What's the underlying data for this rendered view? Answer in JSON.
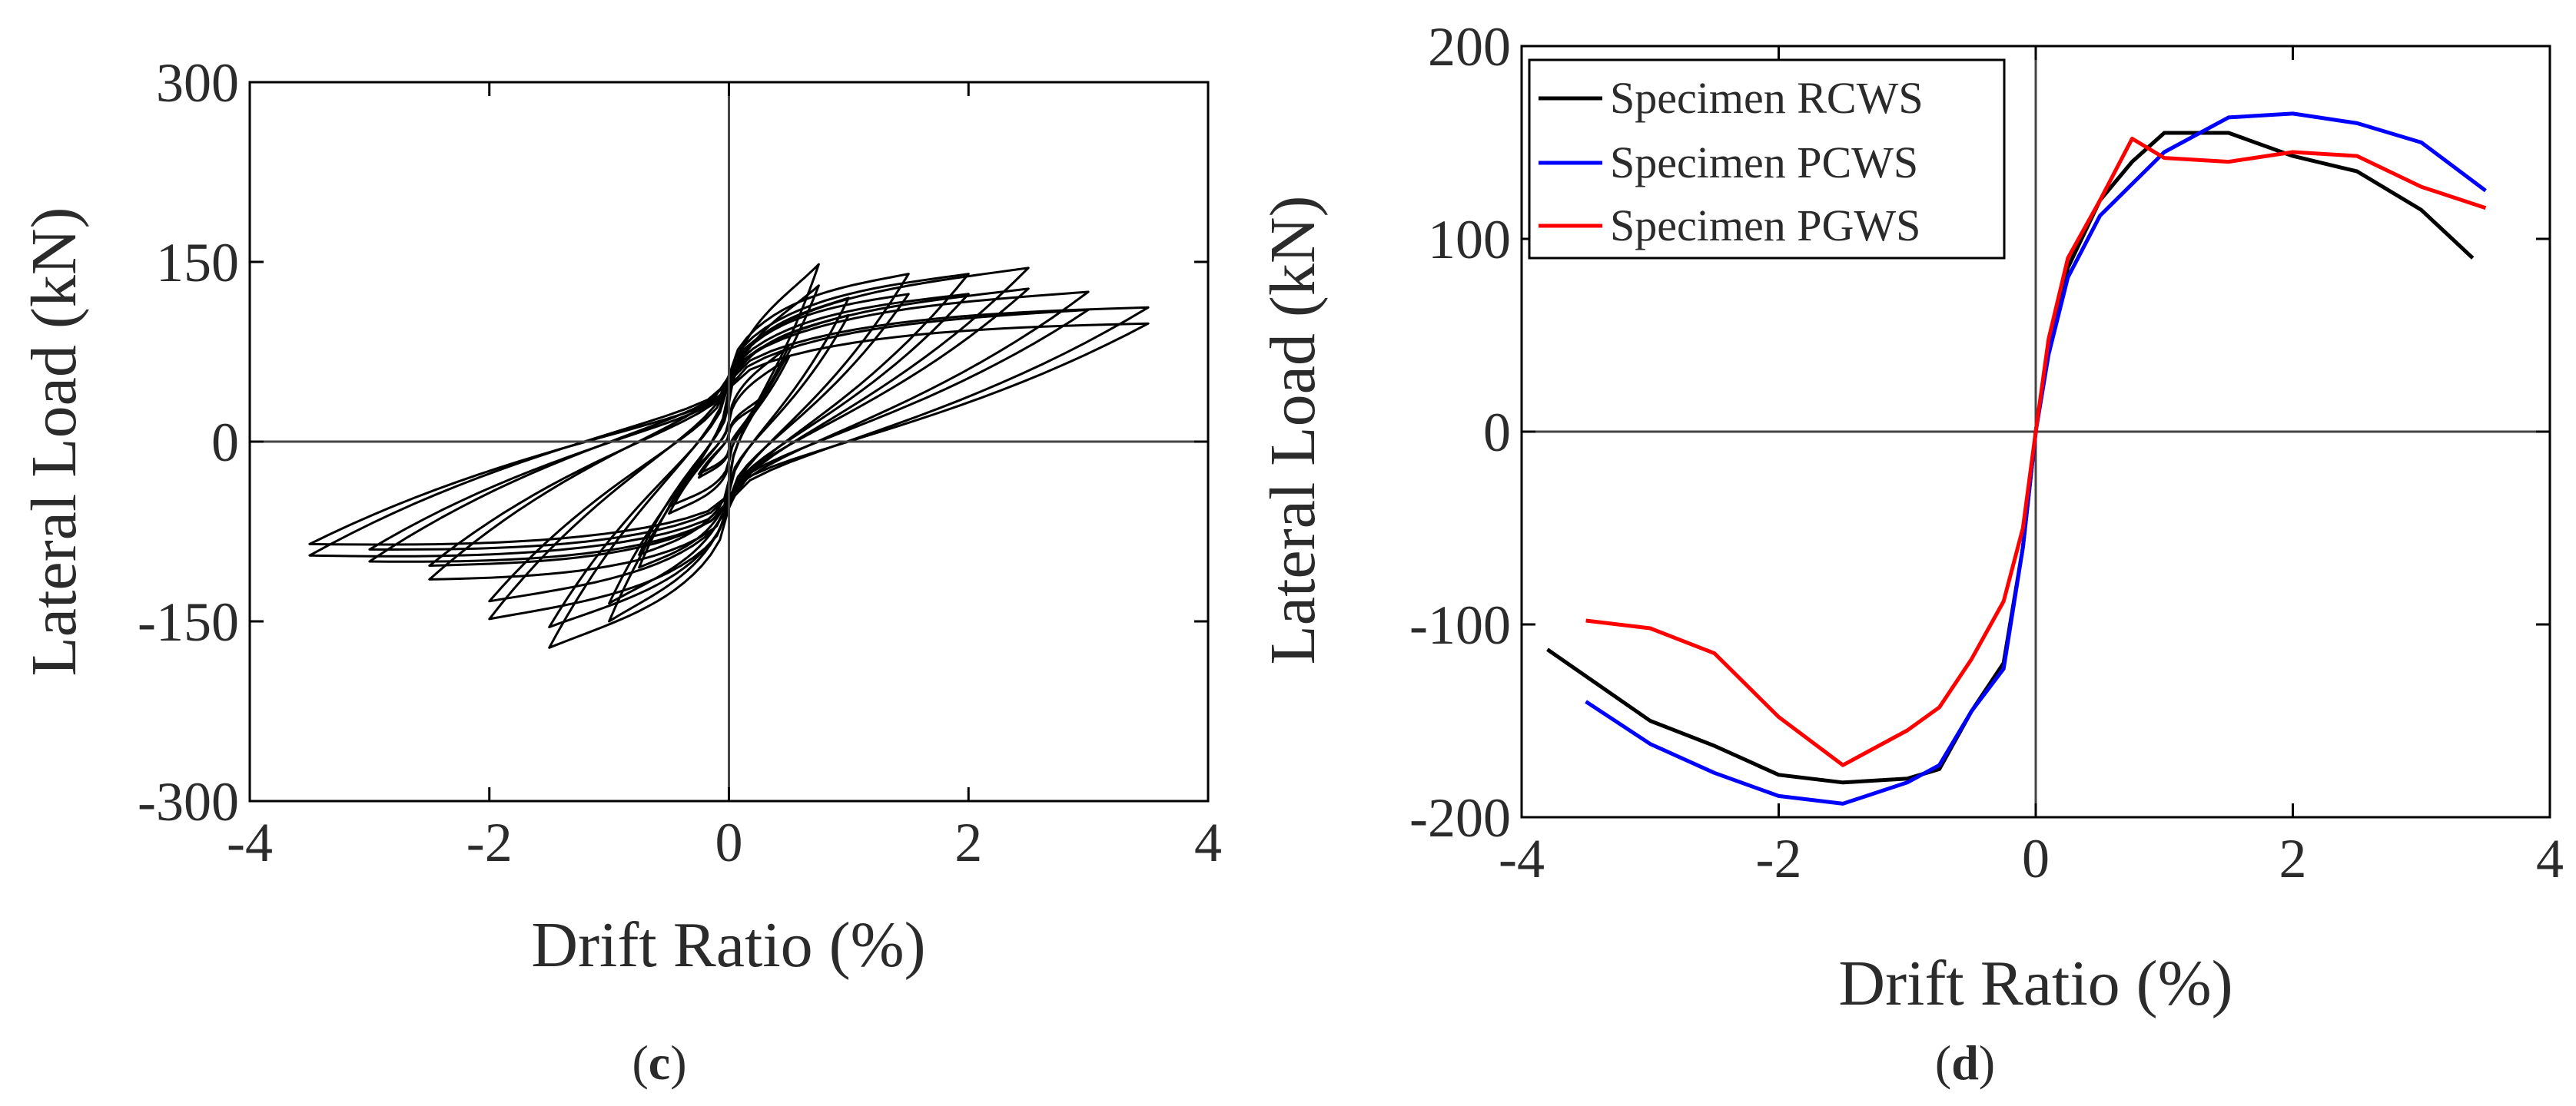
{
  "chart_data": [
    {
      "id": "c",
      "type": "line",
      "subtype": "hysteresis",
      "panel_label": "c",
      "title": "",
      "xlabel": "Drift Ratio (%)",
      "ylabel": "Lateral Load (kN)",
      "xlim": [
        -4,
        4
      ],
      "ylim": [
        -300,
        300
      ],
      "xticks": [
        -4,
        -2,
        0,
        2,
        4
      ],
      "yticks": [
        -300,
        -150,
        0,
        150,
        300
      ],
      "xtick_labels": [
        "-4",
        "-2",
        "0",
        "2",
        "4"
      ],
      "ytick_labels": [
        "-300",
        "-150",
        "0",
        "150",
        "300"
      ],
      "series_color": "#000000",
      "cycles": [
        {
          "amp": 0.25,
          "fpos": 35,
          "fneg": -30
        },
        {
          "amp": 0.5,
          "fpos": 80,
          "fneg": -60
        },
        {
          "amp": 0.75,
          "fpos": 148,
          "fneg": -105
        },
        {
          "amp": 1.0,
          "fpos": 120,
          "fneg": -150
        },
        {
          "amp": 1.5,
          "fpos": 140,
          "fneg": -172
        },
        {
          "amp": 2.0,
          "fpos": 140,
          "fneg": -148
        },
        {
          "amp": 2.5,
          "fpos": 145,
          "fneg": -115
        },
        {
          "amp": 3.0,
          "fpos": 125,
          "fneg": -100
        },
        {
          "amp": 3.5,
          "fpos": 112,
          "fneg": -95
        }
      ]
    },
    {
      "id": "d",
      "type": "line",
      "subtype": "envelope",
      "panel_label": "d",
      "title": "",
      "xlabel": "Drift Ratio (%)",
      "ylabel": "Lateral Load (kN)",
      "xlim": [
        -4,
        4
      ],
      "ylim": [
        -200,
        200
      ],
      "xticks": [
        -4,
        -2,
        0,
        2,
        4
      ],
      "yticks": [
        -200,
        -100,
        0,
        100,
        200
      ],
      "xtick_labels": [
        "-4",
        "-2",
        "0",
        "2",
        "4"
      ],
      "ytick_labels": [
        "-200",
        "-100",
        "0",
        "100",
        "200"
      ],
      "legend_position": "top-left",
      "series": [
        {
          "name": "Specimen RCWS",
          "color": "#000000",
          "x": [
            -3.8,
            -3.0,
            -2.5,
            -2.0,
            -1.5,
            -1.0,
            -0.75,
            -0.5,
            -0.25,
            -0.1,
            0,
            0.1,
            0.25,
            0.5,
            0.75,
            1.0,
            1.5,
            2.0,
            2.5,
            3.0,
            3.4
          ],
          "y": [
            -113,
            -150,
            -163,
            -178,
            -182,
            -180,
            -175,
            -145,
            -120,
            -60,
            0,
            45,
            85,
            120,
            140,
            155,
            155,
            143,
            135,
            115,
            90
          ]
        },
        {
          "name": "Specimen PCWS",
          "color": "#0000ff",
          "x": [
            -3.5,
            -3.0,
            -2.5,
            -2.0,
            -1.5,
            -1.0,
            -0.75,
            -0.5,
            -0.25,
            -0.1,
            0,
            0.1,
            0.25,
            0.5,
            1.0,
            1.5,
            2.0,
            2.5,
            3.0,
            3.5
          ],
          "y": [
            -140,
            -162,
            -177,
            -189,
            -193,
            -182,
            -173,
            -145,
            -123,
            -60,
            0,
            40,
            80,
            112,
            145,
            163,
            165,
            160,
            150,
            125
          ]
        },
        {
          "name": "Specimen PGWS",
          "color": "#ff0000",
          "x": [
            -3.5,
            -3.0,
            -2.5,
            -2.0,
            -1.5,
            -1.0,
            -0.75,
            -0.5,
            -0.25,
            -0.1,
            0,
            0.1,
            0.25,
            0.5,
            0.75,
            1.0,
            1.5,
            2.0,
            2.5,
            3.0,
            3.5
          ],
          "y": [
            -98,
            -102,
            -115,
            -148,
            -173,
            -155,
            -143,
            -118,
            -88,
            -50,
            0,
            48,
            90,
            120,
            152,
            142,
            140,
            145,
            143,
            127,
            116
          ]
        }
      ]
    }
  ]
}
